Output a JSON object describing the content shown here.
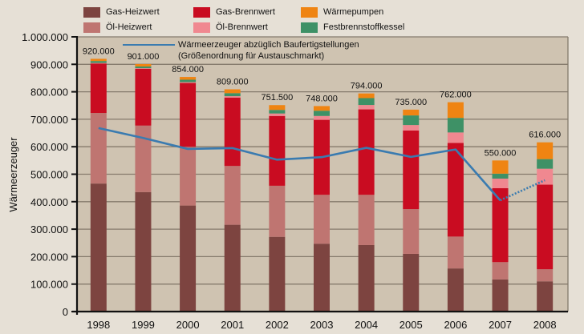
{
  "chart_data": {
    "type": "bar",
    "stacked": true,
    "title": "",
    "xlabel": "",
    "ylabel": "Wärmeerzeuger",
    "ylim": [
      0,
      1000000
    ],
    "yticks": [
      0,
      100000,
      200000,
      300000,
      400000,
      500000,
      600000,
      700000,
      800000,
      900000,
      1000000
    ],
    "ytick_labels": [
      "0",
      "100.000",
      "200.000",
      "300.000",
      "400.000",
      "500.000",
      "600.000",
      "700.000",
      "800.000",
      "900.000",
      "1.000.000"
    ],
    "grid": true,
    "categories": [
      "1998",
      "1999",
      "2000",
      "2001",
      "2002",
      "2003",
      "2004",
      "2005",
      "2006",
      "2007",
      "2008"
    ],
    "totals": [
      920000,
      901000,
      854000,
      809000,
      751500,
      748000,
      794000,
      735000,
      762000,
      550000,
      616000
    ],
    "total_labels": [
      "920.000",
      "901.000",
      "854.000",
      "809.000",
      "751.500",
      "748.000",
      "794.000",
      "735.000",
      "762.000",
      "550.000",
      "616.000"
    ],
    "series": [
      {
        "name": "Gas-Heizwert",
        "color": "#7d4440",
        "values": [
          466000,
          435000,
          386000,
          316000,
          272000,
          247000,
          242000,
          210000,
          157000,
          117000,
          110000
        ]
      },
      {
        "name": "Öl-Heizwert",
        "color": "#bf7571",
        "values": [
          257000,
          242000,
          214000,
          214000,
          186000,
          178000,
          183000,
          163000,
          116000,
          63000,
          44000
        ]
      },
      {
        "name": "Gas-Brennwert",
        "color": "#c90c21",
        "values": [
          180000,
          207000,
          232000,
          249000,
          254000,
          273000,
          311000,
          286000,
          341000,
          269000,
          308000
        ]
      },
      {
        "name": "Öl-Brennwert",
        "color": "#f08890",
        "values": [
          2000,
          2000,
          3000,
          5000,
          9000,
          14000,
          16000,
          20000,
          38000,
          35000,
          58000
        ]
      },
      {
        "name": "Festbrennstoffkessel",
        "color": "#3e9166",
        "values": [
          7000,
          6000,
          9000,
          11000,
          13000,
          19000,
          25000,
          35000,
          53000,
          18000,
          35000
        ]
      },
      {
        "name": "Wärmepumpen",
        "color": "#ef8412",
        "values": [
          8000,
          9000,
          10000,
          14000,
          17500,
          17000,
          17000,
          21000,
          57000,
          48000,
          61000
        ]
      }
    ],
    "line_series": {
      "name": "Wärmeerzeuger abzüglich  Baufertigstellungen (Größenordnung für Austauschmarkt)",
      "color": "#3a7bb0",
      "values": [
        668000,
        632000,
        592000,
        595000,
        553000,
        562000,
        596000,
        563000,
        590000,
        405000,
        478000
      ],
      "dotted_from_index": 9
    },
    "legend": {
      "placement": "top",
      "items": [
        {
          "label": "Gas-Heizwert",
          "color": "#7d4440"
        },
        {
          "label": "Gas-Brennwert",
          "color": "#c90c21"
        },
        {
          "label": "Wärmepumpen",
          "color": "#ef8412"
        },
        {
          "label": "Öl-Heizwert",
          "color": "#bf7571"
        },
        {
          "label": "Öl-Brennwert",
          "color": "#f08890"
        },
        {
          "label": "Festbrennstoffkessel",
          "color": "#3e9166"
        }
      ],
      "line_label_1": "Wärmeerzeuger abzüglich  Baufertigstellungen",
      "line_label_2": "(Größenordnung für Austauschmarkt)"
    }
  }
}
